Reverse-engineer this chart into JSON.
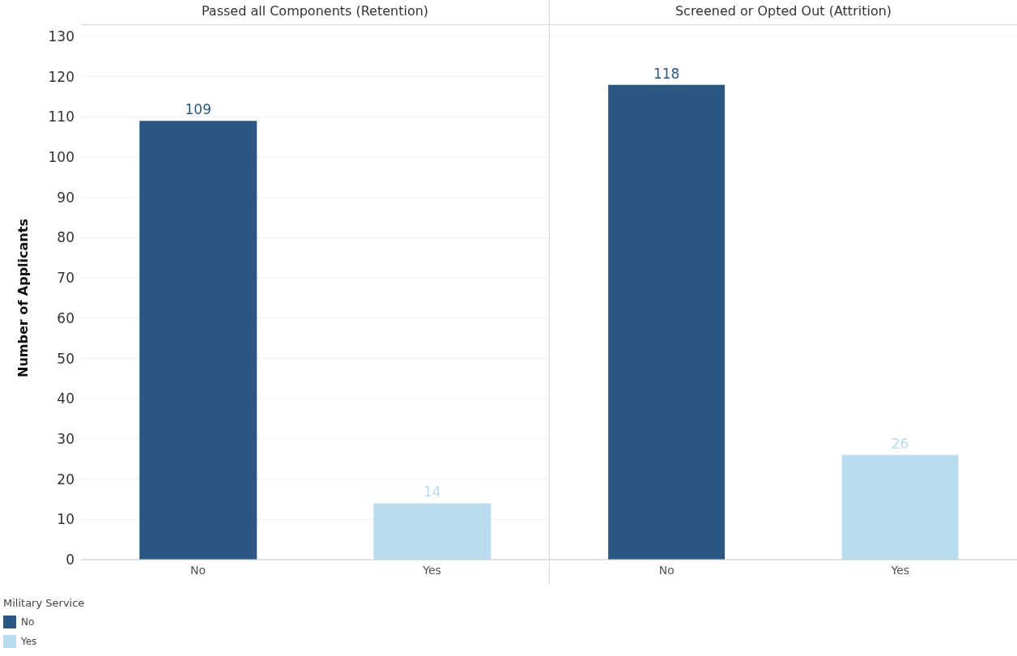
{
  "chart_data": [
    {
      "type": "bar",
      "title": "Passed all Components (Retention)",
      "categories": [
        "No",
        "Yes"
      ],
      "stacked": true,
      "series": [
        {
          "name": "No",
          "color": "#2d5783",
          "values": [
            109,
            null
          ]
        },
        {
          "name": "Yes",
          "color": "#b9dcef",
          "values": [
            null,
            14
          ]
        }
      ],
      "ylabel": "Number of Applicants",
      "ylim": [
        0,
        130
      ],
      "yticks": [
        0,
        10,
        20,
        30,
        40,
        50,
        60,
        70,
        80,
        90,
        100,
        110,
        120,
        130
      ],
      "grid": "y",
      "data_labels": true,
      "legend": "bottom left",
      "legend_title": "Military Service"
    },
    {
      "type": "bar",
      "title": "Screened or Opted Out (Attrition)",
      "categories": [
        "No",
        "Yes"
      ],
      "stacked": true,
      "series": [
        {
          "color": "#2d5783",
          "values": [
            118,
            null
          ]
        },
        {
          "color": "#b9dcef",
          "values": [
            null,
            26
          ]
        }
      ],
      "ylim": [
        0,
        130
      ],
      "yticks": [
        0,
        10,
        20,
        30,
        40,
        50,
        60,
        70,
        80,
        90,
        100,
        110,
        120,
        130
      ],
      "grid": "y",
      "data_labels": true,
      "tick_labels": "x"
    }
  ]
}
